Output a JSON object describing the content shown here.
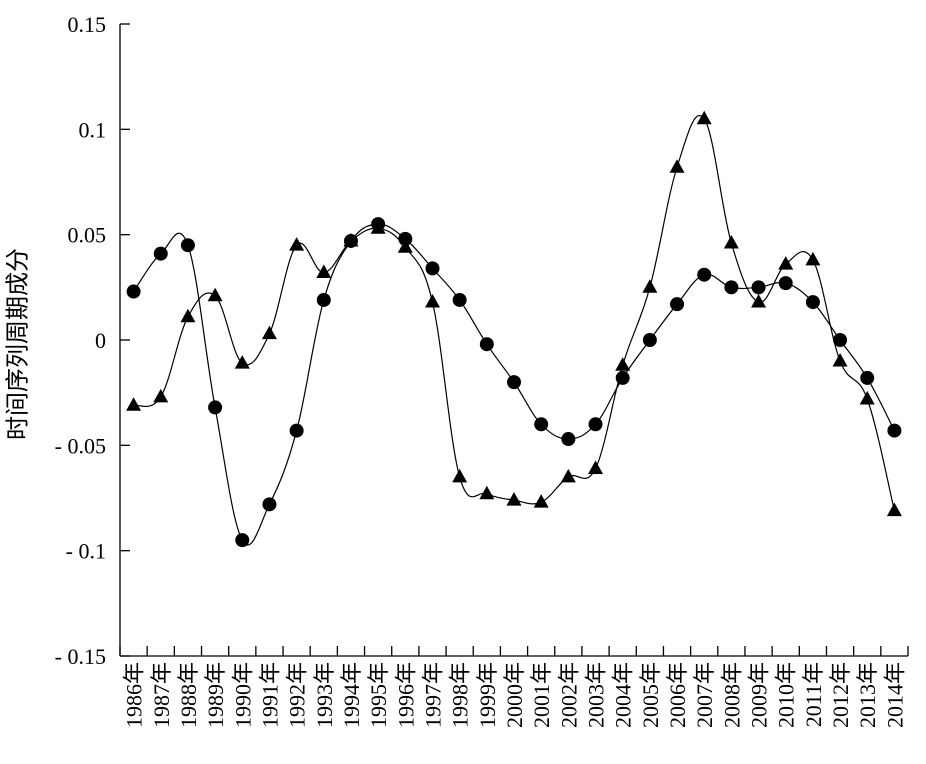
{
  "chart_data": {
    "type": "line",
    "title": "",
    "xlabel": "",
    "ylabel": "时间序列周期成分",
    "ylim": [
      -0.15,
      0.15
    ],
    "yticks": [
      0.15,
      0.1,
      0.05,
      0,
      -0.05,
      -0.1,
      -0.15
    ],
    "ytick_labels": [
      "0.15",
      "0.1",
      "0.05",
      "0",
      "- 0.05",
      "- 0.1",
      "- 0.15"
    ],
    "categories": [
      "1986年",
      "1987年",
      "1988年",
      "1989年",
      "1990年",
      "1991年",
      "1992年",
      "1993年",
      "1994年",
      "1995年",
      "1996年",
      "1997年",
      "1998年",
      "1999年",
      "2000年",
      "2001年",
      "2002年",
      "2003年",
      "2004年",
      "2005年",
      "2006年",
      "2007年",
      "2008年",
      "2009年",
      "2010年",
      "2011年",
      "2012年",
      "2013年",
      "2014年"
    ],
    "grid": false,
    "legend": "none",
    "series": [
      {
        "name": "circle series",
        "marker": "circle",
        "values": [
          0.023,
          0.041,
          0.045,
          -0.032,
          -0.095,
          -0.078,
          -0.043,
          0.019,
          0.047,
          0.055,
          0.048,
          0.034,
          0.019,
          -0.002,
          -0.02,
          -0.04,
          -0.047,
          -0.04,
          -0.018,
          0.0,
          0.017,
          0.031,
          0.025,
          0.025,
          0.027,
          0.018,
          0.0,
          -0.018,
          -0.043
        ]
      },
      {
        "name": "triangle series",
        "marker": "triangle",
        "values": [
          -0.031,
          -0.027,
          0.011,
          0.021,
          -0.011,
          0.003,
          0.045,
          0.032,
          0.047,
          0.053,
          0.044,
          0.018,
          -0.065,
          -0.073,
          -0.076,
          -0.077,
          -0.065,
          -0.061,
          -0.012,
          0.025,
          0.082,
          0.105,
          0.046,
          0.018,
          0.036,
          0.038,
          -0.01,
          -0.028,
          -0.081
        ]
      }
    ]
  }
}
